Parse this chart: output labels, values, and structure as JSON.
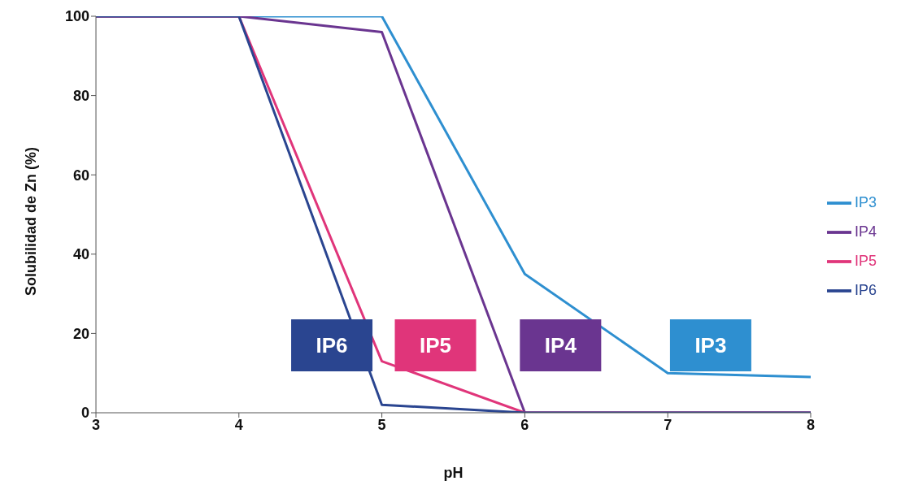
{
  "chart_data": {
    "type": "line",
    "xlabel": "pH",
    "ylabel": "Solubilidad de Zn (%)",
    "x": [
      3,
      4,
      5,
      6,
      7,
      8
    ],
    "series": [
      {
        "name": "IP3",
        "color": "#2e8fd0",
        "values": [
          100,
          100,
          100,
          35,
          10,
          9
        ]
      },
      {
        "name": "IP4",
        "color": "#6a3590",
        "values": [
          100,
          100,
          96,
          0,
          0,
          0
        ]
      },
      {
        "name": "IP5",
        "color": "#e0357a",
        "values": [
          100,
          100,
          13,
          0,
          0,
          0
        ]
      },
      {
        "name": "IP6",
        "color": "#2a4590",
        "values": [
          100,
          100,
          2,
          0,
          0,
          0
        ]
      }
    ],
    "annotations": [
      "IP3",
      "IP4",
      "IP5",
      "IP6"
    ],
    "xlim": [
      3,
      8
    ],
    "xticks": [
      3,
      4,
      5,
      6,
      7,
      8
    ],
    "ylim": [
      0,
      100
    ],
    "yticks": [
      0,
      20,
      40,
      60,
      80,
      100
    ],
    "grid": false,
    "legend": "right",
    "marker": "none",
    "line_style": "solid"
  }
}
